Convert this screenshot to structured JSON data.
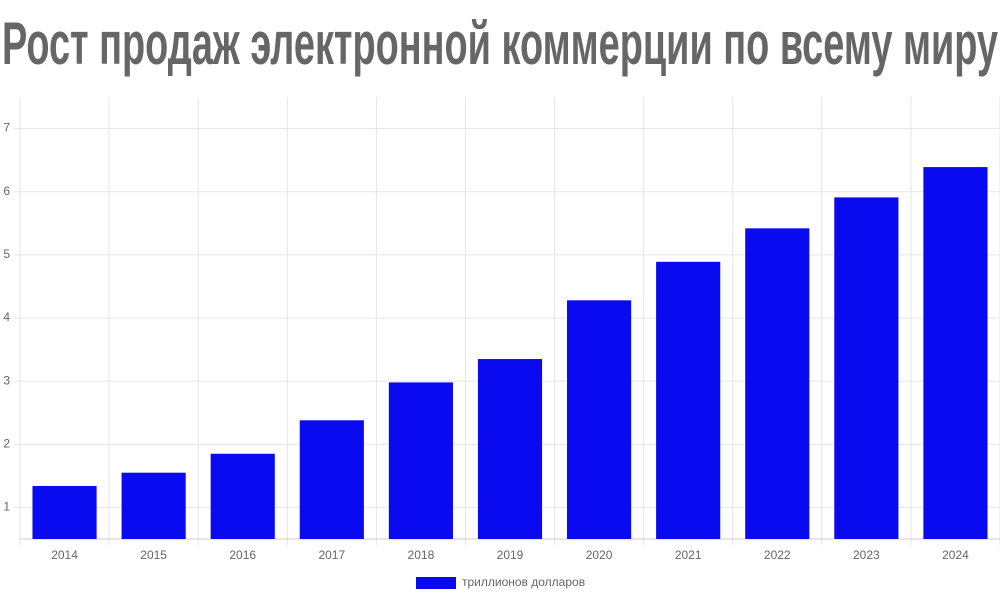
{
  "chart_data": {
    "type": "bar",
    "title": "Рост продаж электронной коммерции по всему миру",
    "categories": [
      "2014",
      "2015",
      "2016",
      "2017",
      "2018",
      "2019",
      "2020",
      "2021",
      "2022",
      "2023",
      "2024"
    ],
    "series": [
      {
        "name": "триллионов долларов",
        "color": "#0a0af0",
        "values": [
          1.34,
          1.55,
          1.85,
          2.38,
          2.98,
          3.35,
          4.28,
          4.89,
          5.42,
          5.91,
          6.39
        ]
      }
    ],
    "ylim": [
      0.5,
      7.5
    ],
    "yticks": [
      1,
      2,
      3,
      4,
      5,
      6,
      7
    ],
    "grid": true,
    "legend": "bottom"
  }
}
